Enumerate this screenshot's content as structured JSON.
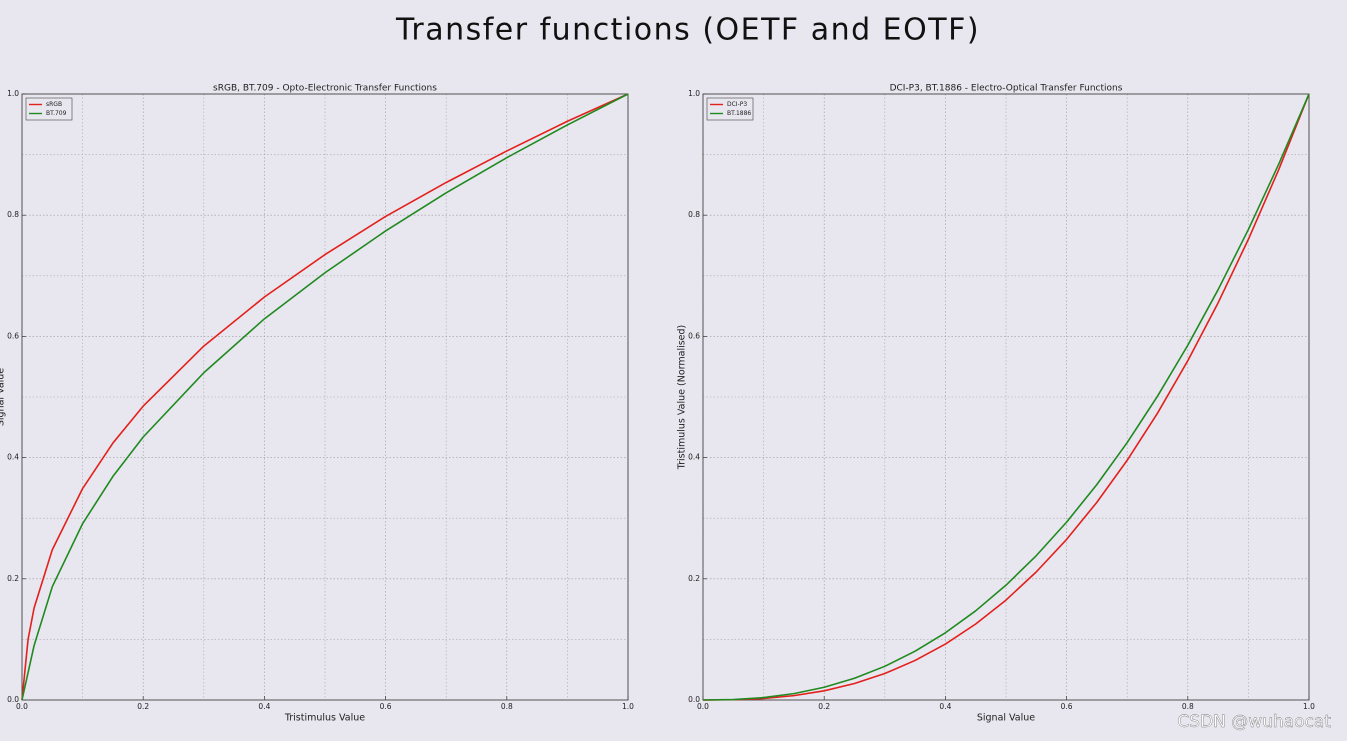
{
  "title": "Transfer functions (OETF and EOTF)",
  "watermark": "CSDN @wuhaocat",
  "chart_data": [
    {
      "type": "line",
      "title": "sRGB, BT.709 - Opto-Electronic Transfer Functions",
      "xlabel": "Tristimulus Value",
      "ylabel": "Signal Value",
      "x": [
        0,
        0.01,
        0.02,
        0.05,
        0.1,
        0.15,
        0.2,
        0.3,
        0.4,
        0.5,
        0.6,
        0.7,
        0.8,
        0.9,
        1.0
      ],
      "series": [
        {
          "name": "sRGB",
          "color": "#e3201c",
          "values": [
            0,
            0.1,
            0.152,
            0.248,
            0.349,
            0.424,
            0.485,
            0.584,
            0.665,
            0.735,
            0.798,
            0.854,
            0.906,
            0.955,
            1.0
          ]
        },
        {
          "name": "BT.709",
          "color": "#1f8a1f",
          "values": [
            0,
            0.045,
            0.09,
            0.187,
            0.291,
            0.369,
            0.434,
            0.54,
            0.629,
            0.705,
            0.774,
            0.837,
            0.895,
            0.949,
            1.0
          ]
        }
      ],
      "xlim": [
        0,
        1
      ],
      "ylim": [
        0,
        1
      ],
      "xticks": [
        {
          "value": 0,
          "label": "0.0"
        },
        0.2,
        0.4,
        0.6,
        0.8,
        {
          "value": 1,
          "label": "1.0"
        }
      ],
      "yticks": [
        {
          "value": 0,
          "label": "0.0"
        },
        0.2,
        0.4,
        0.6,
        0.8,
        {
          "value": 1,
          "label": "1.0"
        }
      ],
      "xminorticks": [
        0.1,
        0.3,
        0.5,
        0.7,
        0.9
      ],
      "yminorticks": [
        0.1,
        0.3,
        0.5,
        0.7,
        0.9
      ],
      "grid": true,
      "legend": "upper left"
    },
    {
      "type": "line",
      "title": "DCI-P3, BT.1886 - Electro-Optical Transfer Functions",
      "xlabel": "Signal Value",
      "ylabel": "Tristimulus Value (Normalised)",
      "x": [
        0,
        0.05,
        0.1,
        0.15,
        0.2,
        0.25,
        0.3,
        0.35,
        0.4,
        0.45,
        0.5,
        0.55,
        0.6,
        0.65,
        0.7,
        0.75,
        0.8,
        0.85,
        0.9,
        0.95,
        1.0
      ],
      "series": [
        {
          "name": "DCI-P3",
          "color": "#e3201c",
          "values": [
            0,
            0.0004,
            0.0025,
            0.0072,
            0.0152,
            0.0272,
            0.0437,
            0.0653,
            0.0923,
            0.1254,
            0.1649,
            0.2114,
            0.265,
            0.3263,
            0.3956,
            0.4733,
            0.5599,
            0.6554,
            0.7603,
            0.8751,
            1.0
          ]
        },
        {
          "name": "BT.1886",
          "color": "#1f8a1f",
          "values": [
            0,
            0.0008,
            0.004,
            0.0105,
            0.021,
            0.0359,
            0.0556,
            0.0805,
            0.1109,
            0.1472,
            0.1895,
            0.2382,
            0.2935,
            0.3556,
            0.4248,
            0.5013,
            0.5854,
            0.6771,
            0.7765,
            0.8842,
            1.0
          ]
        }
      ],
      "xlim": [
        0,
        1
      ],
      "ylim": [
        0,
        1
      ],
      "xticks": [
        {
          "value": 0,
          "label": "0.0"
        },
        0.2,
        0.4,
        0.6,
        0.8,
        {
          "value": 1,
          "label": "1.0"
        }
      ],
      "yticks": [
        {
          "value": 0,
          "label": "0.0"
        },
        0.2,
        0.4,
        0.6,
        0.8,
        {
          "value": 1,
          "label": "1.0"
        }
      ],
      "xminorticks": [
        0.1,
        0.3,
        0.5,
        0.7,
        0.9
      ],
      "yminorticks": [
        0.1,
        0.3,
        0.5,
        0.7,
        0.9
      ],
      "grid": true,
      "legend": "upper left"
    }
  ]
}
